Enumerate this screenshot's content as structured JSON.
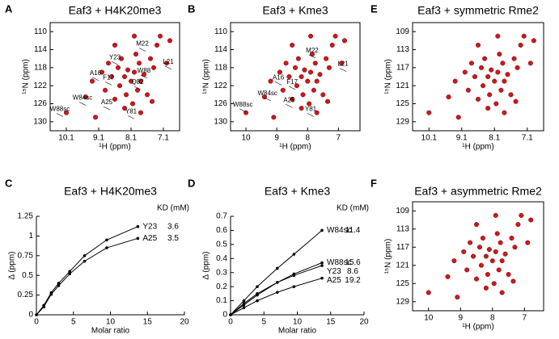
{
  "chart_data": [
    {
      "type": "scatter",
      "panel": "A",
      "title": "Eaf3 + H4K20me3",
      "xlabel": "¹H (ppm)",
      "ylabel": "¹⁵N (ppm)",
      "color": "#c8191e",
      "xlim": [
        10.6,
        6.6
      ],
      "xticks": [
        10.1,
        9.1,
        8.1,
        7.1
      ],
      "ylim": [
        132,
        108
      ],
      "yticks": [
        110,
        114,
        118,
        122,
        126,
        130
      ],
      "x": [
        10.1,
        9.5,
        9.3,
        9.0,
        8.9,
        8.8,
        8.7,
        8.6,
        8.5,
        8.45,
        8.4,
        8.3,
        8.25,
        8.2,
        8.1,
        8.05,
        8.0,
        7.95,
        7.9,
        7.85,
        7.8,
        7.7,
        7.6,
        7.5,
        7.4,
        7.3,
        7.2,
        7.0,
        6.9,
        8.6,
        8.0,
        9.2,
        8.3,
        7.8,
        7.45
      ],
      "y": [
        128,
        124.5,
        121,
        119,
        123,
        117,
        120,
        125,
        118,
        122,
        116,
        120,
        124,
        118.5,
        121,
        126,
        119,
        115,
        123,
        117,
        121,
        119.5,
        124,
        116,
        118,
        113,
        111,
        117,
        112,
        113,
        111,
        129,
        127,
        128,
        125.5
      ],
      "annotations": [
        {
          "text": "M22",
          "x": 7.75,
          "y": 114
        },
        {
          "text": "Y23",
          "x": 8.6,
          "y": 117
        },
        {
          "text": "A16",
          "x": 9.2,
          "y": 120.5
        },
        {
          "text": "F17",
          "x": 8.8,
          "y": 121.5
        },
        {
          "text": "W88",
          "x": 7.7,
          "y": 120
        },
        {
          "text": "Q82",
          "x": 7.9,
          "y": 122.5
        },
        {
          "text": "L21",
          "x": 6.95,
          "y": 118
        },
        {
          "text": "W84sc",
          "x": 9.6,
          "y": 126
        },
        {
          "text": "A25",
          "x": 8.85,
          "y": 127
        },
        {
          "text": "W88sc",
          "x": 10.3,
          "y": 128.5
        },
        {
          "text": "Y81",
          "x": 8.1,
          "y": 129
        }
      ]
    },
    {
      "type": "scatter",
      "panel": "B",
      "title": "Eaf3 + Kme3",
      "xlabel": "¹H (ppm)",
      "ylabel": "¹⁵N (ppm)",
      "color": "#c8191e",
      "xlim": [
        10.5,
        6.3
      ],
      "xticks": [
        10,
        9,
        8,
        7
      ],
      "ylim": [
        132,
        108
      ],
      "yticks": [
        110,
        114,
        118,
        122,
        126,
        130
      ],
      "x": [
        10.0,
        9.4,
        9.2,
        8.9,
        8.8,
        8.7,
        8.6,
        8.5,
        8.4,
        8.35,
        8.3,
        8.2,
        8.15,
        8.1,
        8.0,
        7.95,
        7.9,
        7.85,
        7.8,
        7.75,
        7.7,
        7.6,
        7.5,
        7.4,
        7.3,
        7.2,
        7.1,
        6.9,
        6.8,
        8.5,
        7.9,
        9.1,
        8.2,
        7.7,
        7.35
      ],
      "y": [
        128,
        124.5,
        121,
        119,
        123,
        117,
        120,
        125,
        118,
        122,
        116,
        120,
        124,
        118.5,
        121,
        126,
        119,
        115,
        123,
        117,
        121,
        119.5,
        124,
        116,
        118,
        113,
        111,
        117,
        112,
        113,
        111,
        129,
        127,
        128,
        125.5
      ],
      "annotations": [
        {
          "text": "M22",
          "x": 7.85,
          "y": 115.5
        },
        {
          "text": "L21",
          "x": 6.85,
          "y": 118.5
        },
        {
          "text": "A16",
          "x": 8.95,
          "y": 121.5
        },
        {
          "text": "F17",
          "x": 8.5,
          "y": 122.5
        },
        {
          "text": "W84sc",
          "x": 9.3,
          "y": 125
        },
        {
          "text": "A25",
          "x": 8.6,
          "y": 126.5
        },
        {
          "text": "W88sc",
          "x": 10.1,
          "y": 127.5
        },
        {
          "text": "Y81",
          "x": 7.9,
          "y": 128.5
        }
      ]
    },
    {
      "type": "scatter",
      "panel": "E",
      "title": "Eaf3 + symmetric Rme2",
      "xlabel": "¹H (ppm)",
      "ylabel": "¹⁵N (ppm)",
      "color": "#c8191e",
      "xlim": [
        10.6,
        6.6
      ],
      "xticks": [
        10.1,
        9.1,
        8.1,
        7.1
      ],
      "ylim": [
        131,
        107
      ],
      "yticks": [
        109,
        113,
        117,
        121,
        125,
        129
      ],
      "x": [
        10.1,
        9.5,
        9.3,
        9.0,
        8.9,
        8.8,
        8.7,
        8.6,
        8.5,
        8.45,
        8.4,
        8.3,
        8.25,
        8.2,
        8.1,
        8.05,
        8.0,
        7.95,
        7.9,
        7.85,
        7.8,
        7.7,
        7.6,
        7.5,
        7.4,
        7.3,
        7.2,
        7.0,
        6.9,
        8.6,
        8.0,
        9.2,
        8.3,
        7.8,
        7.45
      ],
      "y": [
        127,
        123.5,
        120,
        118,
        122,
        116,
        119,
        124,
        117,
        121,
        115,
        119,
        123,
        117.5,
        120,
        125,
        118,
        114,
        122,
        116,
        120,
        118.5,
        123,
        115,
        117,
        112,
        110,
        116,
        111,
        112,
        110,
        128,
        126,
        127,
        124.5
      ]
    },
    {
      "type": "line",
      "panel": "C",
      "title": "Eaf3 + H4K20me3",
      "xlabel": "Molar ratio",
      "ylabel": "Δ (ppm)",
      "kd_header": "KD (mM)",
      "xlim": [
        0,
        20
      ],
      "xticks": [
        0,
        5,
        10,
        15,
        20
      ],
      "ylim": [
        0,
        1.25
      ],
      "yticks": [
        0,
        0.25,
        0.5,
        0.75,
        1,
        1.25
      ],
      "x": [
        0,
        1,
        2,
        3,
        4.5,
        6.5,
        9.5,
        13.7
      ],
      "series": [
        {
          "name": "Y23",
          "kd": 3.6,
          "color": "#000000",
          "values": [
            0,
            0.12,
            0.28,
            0.4,
            0.55,
            0.75,
            0.95,
            1.12
          ]
        },
        {
          "name": "A25",
          "kd": 3.5,
          "color": "#000000",
          "values": [
            0,
            0.1,
            0.26,
            0.37,
            0.52,
            0.68,
            0.85,
            0.97
          ]
        }
      ]
    },
    {
      "type": "line",
      "panel": "D",
      "title": "Eaf3 + Kme3",
      "xlabel": "Molar ratio",
      "ylabel": "Δ (ppm)",
      "kd_header": "KD (mM)",
      "xlim": [
        0,
        20
      ],
      "xticks": [
        0,
        5,
        10,
        15,
        20
      ],
      "ylim": [
        0,
        0.7
      ],
      "yticks": [
        0,
        0.1,
        0.2,
        0.3,
        0.4,
        0.5,
        0.6,
        0.7
      ],
      "x": [
        0,
        2,
        4,
        7,
        9.5,
        13.7
      ],
      "series": [
        {
          "name": "W84sc",
          "kd": 11.4,
          "color": "#000000",
          "values": [
            0,
            0.1,
            0.2,
            0.33,
            0.43,
            0.6
          ]
        },
        {
          "name": "W88sc",
          "kd": 15.6,
          "color": "#000000",
          "values": [
            0,
            0.07,
            0.14,
            0.23,
            0.29,
            0.37
          ]
        },
        {
          "name": "Y23",
          "kd": 8.6,
          "color": "#000000",
          "values": [
            0,
            0.08,
            0.15,
            0.23,
            0.28,
            0.35
          ]
        },
        {
          "name": "A25",
          "kd": 19.2,
          "color": "#000000",
          "values": [
            0,
            0.05,
            0.1,
            0.16,
            0.2,
            0.26
          ]
        }
      ]
    },
    {
      "type": "scatter",
      "panel": "F",
      "title": "Eaf3 + asymmetric Rme2",
      "xlabel": "¹H (ppm)",
      "ylabel": "¹⁵N (ppm)",
      "color": "#c8191e",
      "xlim": [
        10.5,
        6.4
      ],
      "xticks": [
        10,
        9,
        8,
        7
      ],
      "ylim": [
        131,
        107
      ],
      "yticks": [
        109,
        113,
        117,
        121,
        125,
        129
      ],
      "x": [
        10.0,
        9.4,
        9.2,
        8.9,
        8.8,
        8.7,
        8.6,
        8.5,
        8.4,
        8.35,
        8.3,
        8.2,
        8.15,
        8.1,
        8.0,
        7.95,
        7.9,
        7.85,
        7.8,
        7.75,
        7.7,
        7.6,
        7.5,
        7.4,
        7.3,
        7.2,
        7.1,
        6.9,
        6.8,
        8.5,
        7.9,
        9.1,
        8.2,
        7.7,
        7.35
      ],
      "y": [
        127,
        123.5,
        120,
        118,
        122,
        116,
        119,
        124,
        117,
        121,
        115,
        119,
        123,
        117.5,
        120,
        125,
        118,
        114,
        122,
        116,
        120,
        118.5,
        123,
        115,
        117,
        112,
        110,
        116,
        111,
        112,
        110,
        128,
        126,
        127,
        124.5
      ]
    }
  ]
}
